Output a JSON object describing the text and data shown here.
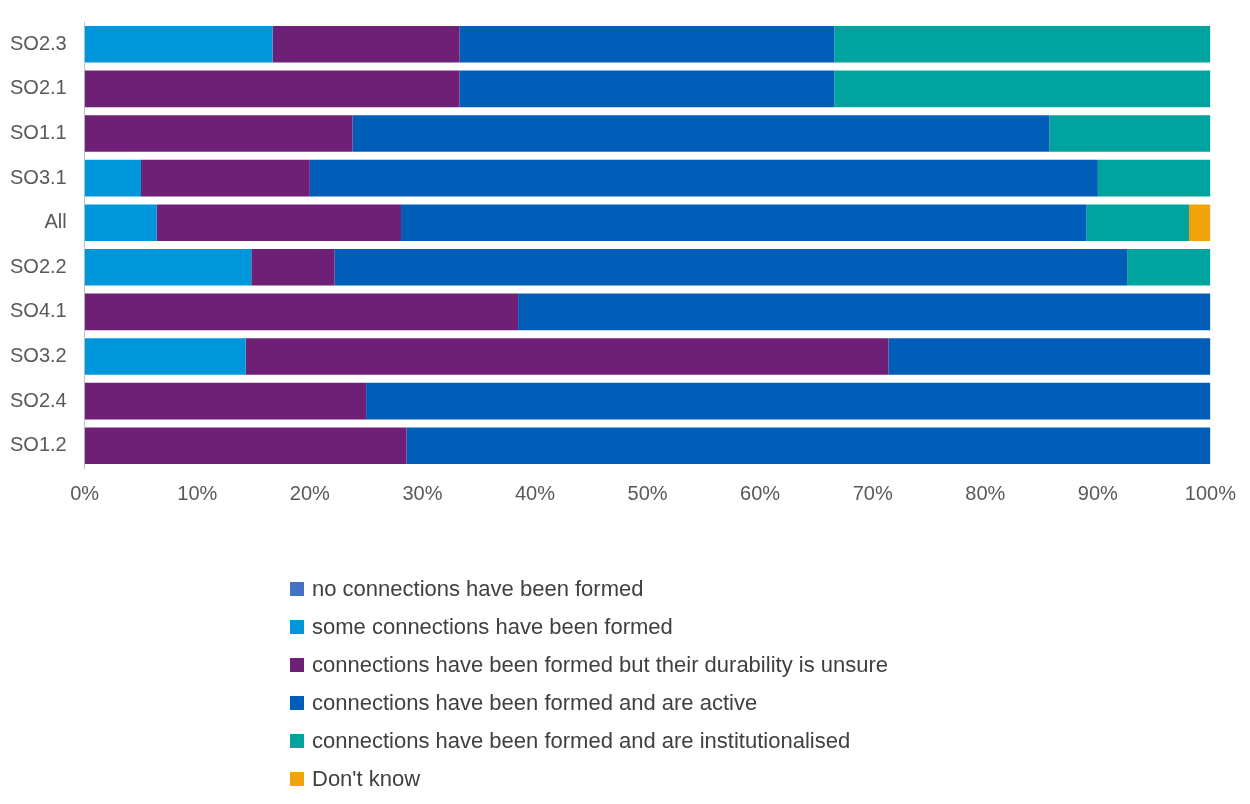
{
  "chart_data": {
    "type": "bar",
    "orientation": "horizontal",
    "stacked": true,
    "legend": "bottom",
    "grid": false,
    "categories": [
      "SO2.3",
      "SO2.1",
      "SO1.1",
      "SO3.1",
      "All",
      "SO2.2",
      "SO4.1",
      "SO3.2",
      "SO2.4",
      "SO1.2"
    ],
    "xlim": [
      0,
      100
    ],
    "xticks": [
      {
        "value": 0,
        "label": "0%"
      },
      {
        "value": 10,
        "label": "10%"
      },
      {
        "value": 20,
        "label": "20%"
      },
      {
        "value": 30,
        "label": "30%"
      },
      {
        "value": 40,
        "label": "40%"
      },
      {
        "value": 50,
        "label": "50%"
      },
      {
        "value": 60,
        "label": "60%"
      },
      {
        "value": 70,
        "label": "70%"
      },
      {
        "value": 80,
        "label": "80%"
      },
      {
        "value": 90,
        "label": "90%"
      },
      {
        "value": 100,
        "label": "100%"
      }
    ],
    "series": [
      {
        "name": "no connections have been formed",
        "color": "#4472c4",
        "values": [
          0,
          0,
          0,
          0,
          0,
          0,
          0,
          0,
          0,
          0
        ]
      },
      {
        "name": "some connections have been formed",
        "color": "#0096db",
        "values": [
          16.7,
          0,
          0,
          5,
          6.4,
          14.8,
          0,
          14.3,
          0,
          0
        ]
      },
      {
        "name": "connections have been formed but their durability is unsure",
        "color": "#6e1f76",
        "values": [
          16.6,
          33.3,
          23.8,
          15,
          21.7,
          7.4,
          38.5,
          57.1,
          25,
          28.6
        ]
      },
      {
        "name": "connections have been formed and are active",
        "color": "#005eb8",
        "values": [
          33.3,
          33.3,
          61.9,
          70,
          60.9,
          70.4,
          61.5,
          28.6,
          75,
          71.4
        ]
      },
      {
        "name": "connections have been formed and are institutionalised",
        "color": "#00a39d",
        "values": [
          33.4,
          33.4,
          14.3,
          10,
          9.1,
          7.4,
          0,
          0,
          0,
          0
        ]
      },
      {
        "name": "Don't know",
        "color": "#f0a30a",
        "values": [
          0,
          0,
          0,
          0,
          1.9,
          0,
          0,
          0,
          0,
          0
        ]
      }
    ]
  }
}
